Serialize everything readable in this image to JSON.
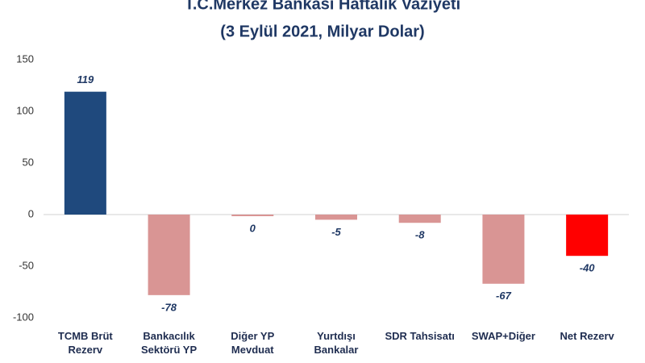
{
  "chart_data": {
    "type": "bar",
    "title": "T.C.Merkez Bankası Haftalık Vaziyeti",
    "subtitle": "(3 Eylül 2021, Milyar Dolar)",
    "categories": [
      "TCMB Brüt Rezerv",
      "Bankacılık Sektörü YP",
      "Diğer YP Mevduat",
      "Yurtdışı Bankalar",
      "SDR Tahsisatı",
      "SWAP+Diğer",
      "Net Rezerv"
    ],
    "values": [
      119,
      -78,
      0,
      -5,
      -8,
      -67,
      -40
    ],
    "colors": [
      "#1f497d",
      "#d99594",
      "#d99594",
      "#d99594",
      "#d99594",
      "#d99594",
      "#ff0000"
    ],
    "ylim": [
      -100,
      150
    ],
    "yticks": [
      -100,
      -50,
      0,
      50,
      100,
      150
    ],
    "grid": false
  }
}
